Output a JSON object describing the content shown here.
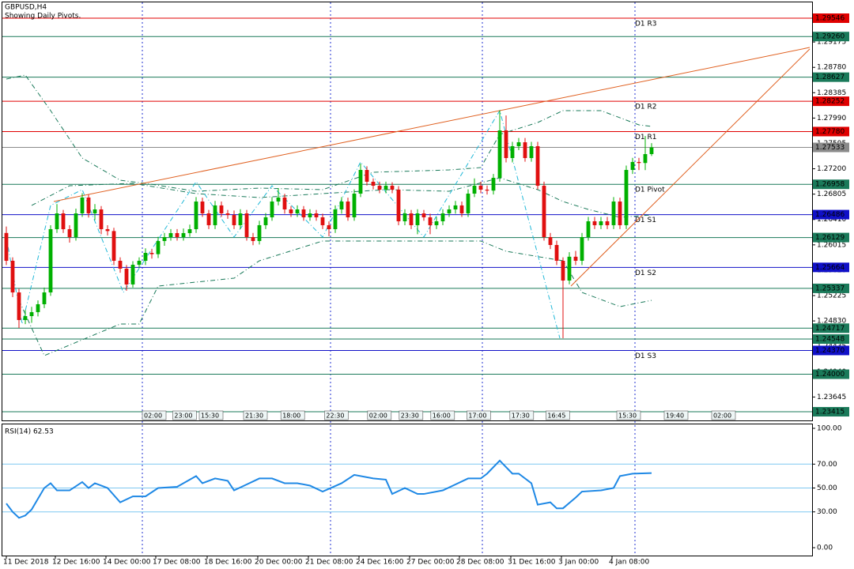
{
  "chart_data": [
    {
      "type": "candlestick",
      "title": "GBPUSD,H4",
      "subtitle": "Showing Daily Pivots.",
      "xlim": [
        -0.5,
        127
      ],
      "ylim": [
        1.2328,
        1.2978
      ],
      "yticks": [
        1.29175,
        {
          "value": 1.2878,
          "label": "1.28780"
        },
        1.28385,
        {
          "value": 1.2799,
          "label": "1.27990"
        },
        1.27595,
        {
          "value": 1.272,
          "label": "1.27200"
        },
        1.26805,
        {
          "value": 1.2641,
          "label": "1.26410"
        },
        1.26015,
        {
          "value": 1.2562,
          "label": "1.25620"
        },
        1.25225,
        {
          "value": 1.2483,
          "label": "1.24830"
        },
        1.24435,
        {
          "value": 1.2404,
          "label": "1.24040"
        },
        1.23645
      ],
      "up_color": "#00b000",
      "down_color": "#e01010",
      "open": [
        1.262,
        1.25767,
        1.25274,
        1.24844,
        1.24905,
        1.24967,
        1.2509,
        1.25274,
        1.26259,
        1.26505,
        1.26259,
        1.26136,
        1.26505,
        1.26752,
        1.26505,
        1.26567,
        1.26259,
        1.2623,
        1.25767,
        1.25644,
        1.25398,
        1.25705,
        1.25767,
        1.2589,
        1.2587,
        1.26075,
        1.26136,
        1.26198,
        1.26136,
        1.26198,
        1.26259,
        1.2669,
        1.26505,
        1.26321,
        1.26629,
        1.26505,
        1.2648,
        1.26321,
        1.26505,
        1.26136,
        1.26075,
        1.26321,
        1.26444,
        1.2669,
        1.26752,
        1.26567,
        1.26505,
        1.26567,
        1.26444,
        1.26505,
        1.26444,
        1.26321,
        1.26259,
        1.26567,
        1.2669,
        1.26444,
        1.26813,
        1.27182,
        1.26998,
        1.26936,
        1.26875,
        1.26936,
        1.26875,
        1.26382,
        1.26505,
        1.26321,
        1.26505,
        1.26444,
        1.26321,
        1.26382,
        1.26505,
        1.26567,
        1.26629,
        1.26505,
        1.26813,
        1.26936,
        1.26875,
        1.2686,
        1.27059,
        1.27798,
        1.27367,
        1.27552,
        1.27613,
        1.27367,
        1.27552,
        1.26936,
        1.26136,
        1.26013,
        1.25767,
        1.25459,
        1.2583,
        1.25767,
        1.26136,
        1.26382,
        1.26321,
        1.26382,
        1.26321,
        1.2669,
        1.26321,
        1.27182,
        1.27306,
        1.2729,
        1.27429
      ],
      "high": [
        1.263,
        1.2582,
        1.2533,
        1.25,
        1.2505,
        1.2515,
        1.2535,
        1.2632,
        1.2665,
        1.2656,
        1.2632,
        1.2658,
        1.2682,
        1.268,
        1.2665,
        1.2662,
        1.2632,
        1.2628,
        1.2582,
        1.257,
        1.2576,
        1.2582,
        1.2596,
        1.2595,
        1.2614,
        1.262,
        1.2626,
        1.2626,
        1.2627,
        1.2633,
        1.2676,
        1.2675,
        1.2656,
        1.267,
        1.2669,
        1.2656,
        1.2655,
        1.2657,
        1.2656,
        1.262,
        1.2639,
        1.2651,
        1.2676,
        1.269,
        1.2681,
        1.2662,
        1.2663,
        1.2662,
        1.2657,
        1.2656,
        1.265,
        1.2638,
        1.2663,
        1.2676,
        1.2675,
        1.2688,
        1.2728,
        1.2724,
        1.2705,
        1.27,
        1.27,
        1.2699,
        1.2693,
        1.2657,
        1.2656,
        1.2657,
        1.2656,
        1.265,
        1.2645,
        1.2657,
        1.2663,
        1.267,
        1.2669,
        1.2688,
        1.2705,
        1.27,
        1.2694,
        1.2712,
        1.2811,
        1.2803,
        1.2762,
        1.2768,
        1.2768,
        1.2762,
        1.2762,
        1.27,
        1.262,
        1.2608,
        1.2582,
        1.259,
        1.2592,
        1.262,
        1.2645,
        1.2645,
        1.2645,
        1.2645,
        1.2676,
        1.2675,
        1.2725,
        1.2737,
        1.2737,
        1.2771,
        1.276
      ],
      "low": [
        1.257,
        1.252,
        1.2472,
        1.2478,
        1.248,
        1.249,
        1.2503,
        1.2522,
        1.262,
        1.262,
        1.2605,
        1.2608,
        1.2645,
        1.2644,
        1.264,
        1.2618,
        1.2616,
        1.257,
        1.2558,
        1.253,
        1.2535,
        1.2565,
        1.257,
        1.258,
        1.2581,
        1.26,
        1.2608,
        1.2608,
        1.2608,
        1.2614,
        1.262,
        1.2645,
        1.2626,
        1.2626,
        1.2645,
        1.2642,
        1.2626,
        1.2626,
        1.2608,
        1.2601,
        1.2602,
        1.2626,
        1.2639,
        1.2663,
        1.265,
        1.2645,
        1.2645,
        1.2639,
        1.2639,
        1.2639,
        1.2626,
        1.2615,
        1.262,
        1.265,
        1.2639,
        1.2639,
        1.2676,
        1.2694,
        1.2688,
        1.2682,
        1.2682,
        1.2682,
        1.2632,
        1.2632,
        1.2626,
        1.2618,
        1.2639,
        1.2618,
        1.2626,
        1.2632,
        1.2645,
        1.265,
        1.2645,
        1.2645,
        1.2676,
        1.2682,
        1.268,
        1.268,
        1.27,
        1.273,
        1.273,
        1.2749,
        1.2731,
        1.2731,
        1.2688,
        1.2608,
        1.2595,
        1.257,
        1.2456,
        1.254,
        1.257,
        1.257,
        1.2608,
        1.2626,
        1.2626,
        1.2626,
        1.2626,
        1.2626,
        1.2626,
        1.2712,
        1.2718,
        1.2718,
        1.274
      ],
      "close": [
        1.25767,
        1.25274,
        1.24844,
        1.24905,
        1.24967,
        1.2509,
        1.25274,
        1.26259,
        1.26505,
        1.26259,
        1.26136,
        1.26505,
        1.26752,
        1.26505,
        1.26567,
        1.26259,
        1.2623,
        1.25767,
        1.25644,
        1.25398,
        1.25705,
        1.25767,
        1.2589,
        1.2587,
        1.26075,
        1.26136,
        1.26198,
        1.26136,
        1.26198,
        1.26259,
        1.2669,
        1.26505,
        1.26321,
        1.26629,
        1.26505,
        1.2648,
        1.26321,
        1.26505,
        1.26136,
        1.26075,
        1.26321,
        1.26444,
        1.2669,
        1.26752,
        1.26567,
        1.26505,
        1.26567,
        1.26444,
        1.26505,
        1.26444,
        1.26321,
        1.26259,
        1.26567,
        1.2669,
        1.26444,
        1.26813,
        1.27182,
        1.26998,
        1.26936,
        1.26875,
        1.26936,
        1.26875,
        1.26382,
        1.26505,
        1.26321,
        1.26505,
        1.26444,
        1.26321,
        1.26382,
        1.26505,
        1.26567,
        1.26629,
        1.26505,
        1.26813,
        1.26936,
        1.26875,
        1.2686,
        1.27059,
        1.27798,
        1.27367,
        1.27552,
        1.27613,
        1.27367,
        1.27552,
        1.26936,
        1.26136,
        1.26013,
        1.25767,
        1.25459,
        1.2583,
        1.25767,
        1.26136,
        1.26382,
        1.26321,
        1.26382,
        1.26321,
        1.2669,
        1.26321,
        1.27182,
        1.27306,
        1.2729,
        1.27429,
        1.27533
      ],
      "levels": [
        {
          "value": 1.29546,
          "color": "#e00000",
          "pivot": "D1 R3"
        },
        {
          "value": 1.2926,
          "label": "1.29260",
          "color": "#1a7a5a"
        },
        {
          "value": 1.28627,
          "color": "#1a7a5a"
        },
        {
          "value": 1.28252,
          "color": "#e00000",
          "pivot": "D1 R2"
        },
        {
          "value": 1.2778,
          "label": "1.27780",
          "color": "#e00000",
          "pivot": "D1 R1"
        },
        {
          "value": 1.27533,
          "color": "#8a8a8a"
        },
        {
          "value": 1.26958,
          "color": "#1a7a5a",
          "pivot": "D1 Pivot"
        },
        {
          "value": 1.26486,
          "color": "#1010c8",
          "pivot": "D1 S1"
        },
        {
          "value": 1.26129,
          "color": "#1a7a5a"
        },
        {
          "value": 1.25664,
          "color": "#1010c8",
          "pivot": "D1 S2"
        },
        {
          "value": 1.25337,
          "color": "#1a7a5a"
        },
        {
          "value": 1.24717,
          "color": "#1a7a5a"
        },
        {
          "value": 1.24548,
          "color": "#1a7a5a"
        },
        {
          "value": 1.2437,
          "label": "1.24370",
          "color": "#1010c8",
          "pivot": "D1 S3"
        },
        {
          "value": 1.24,
          "label": "1.24000",
          "color": "#1a7a5a"
        },
        {
          "value": 1.23415,
          "color": "#1a7a5a"
        }
      ],
      "bands": [
        {
          "color": "#1a7a5a",
          "x": [
            0,
            3,
            7,
            12,
            18,
            22,
            30,
            40,
            50,
            58,
            70,
            75,
            78,
            84,
            88,
            94,
            100,
            102
          ],
          "values": [
            1.28598,
            1.2866,
            1.28106,
            1.27367,
            1.27022,
            1.26973,
            1.2685,
            1.26899,
            1.26875,
            1.27146,
            1.27182,
            1.27219,
            1.27736,
            1.27921,
            1.28106,
            1.28106,
            1.27884,
            1.2786
          ]
        },
        {
          "color": "#1a7a5a",
          "x": [
            4,
            10,
            20,
            30,
            40,
            50,
            60,
            70,
            78,
            84,
            88,
            92,
            97,
            102
          ],
          "values": [
            1.26629,
            1.26936,
            1.26973,
            1.26813,
            1.26752,
            1.26813,
            1.26875,
            1.2685,
            1.27059,
            1.26875,
            1.2669,
            1.26567,
            1.26444,
            1.26481
          ]
        },
        {
          "color": "#1a7a5a",
          "x": [
            2,
            6,
            12,
            18,
            21,
            24,
            36,
            40,
            50,
            75,
            79,
            88,
            91,
            97,
            102
          ],
          "values": [
            1.25151,
            1.2429,
            1.24536,
            1.24782,
            1.24782,
            1.25373,
            1.25496,
            1.25767,
            1.26075,
            1.26075,
            1.25915,
            1.25767,
            1.25274,
            1.25053,
            1.25151
          ]
        },
        {
          "color": "#20b8d8",
          "x": [
            0,
            2.5,
            7,
            12,
            18.5,
            30,
            36,
            42,
            50,
            56,
            66,
            78,
            87.5
          ],
          "values": [
            1.26136,
            1.24782,
            1.26629,
            1.26875,
            1.25274,
            1.26998,
            1.26136,
            1.26936,
            1.26136,
            1.27306,
            1.26136,
            1.28106,
            1.2456
          ]
        }
      ],
      "trendlines": [
        {
          "color": "#e06020",
          "x": [
            7.5,
            127
          ],
          "values": [
            1.2669,
            1.2909
          ]
        },
        {
          "color": "#e06020",
          "x": [
            89.25,
            127
          ],
          "values": [
            1.25373,
            1.29066
          ]
        }
      ],
      "time_markers": [
        {
          "x": 21.5,
          "label": "02:00"
        },
        {
          "x": 26.3,
          "label": "23:00"
        },
        {
          "x": 30.5,
          "label": "15:30"
        },
        {
          "x": 37.5,
          "label": "21:30"
        },
        {
          "x": 43.4,
          "label": "18:00"
        },
        {
          "x": 50.3,
          "label": "22:30"
        },
        {
          "x": 57.1,
          "label": "02:00"
        },
        {
          "x": 62.1,
          "label": "23:30"
        },
        {
          "x": 67.1,
          "label": "16:00"
        },
        {
          "x": 72.8,
          "label": "17:00"
        },
        {
          "x": 79.6,
          "label": "17:30"
        },
        {
          "x": 85.3,
          "label": "16:45"
        },
        {
          "x": 96.5,
          "label": "15:30"
        },
        {
          "x": 104,
          "label": "19:40"
        },
        {
          "x": 111.5,
          "label": "02:00"
        }
      ]
    },
    {
      "type": "line",
      "title": "RSI(14) 62.53",
      "color": "#1e88e5",
      "xlim": [
        -0.5,
        127
      ],
      "ylim": [
        -6.6,
        103.3
      ],
      "yticks": [
        {
          "value": 100,
          "label": "100.00"
        },
        {
          "value": 70,
          "label": "70.00"
        },
        {
          "value": 50,
          "label": "50.00"
        },
        {
          "value": 30,
          "label": "30.00"
        },
        {
          "value": 0,
          "label": "0.00"
        }
      ],
      "levels": [
        70,
        50,
        30
      ],
      "x": [
        0,
        1,
        2,
        3,
        4,
        6,
        7,
        8,
        10,
        12,
        13,
        14,
        16,
        18,
        20,
        22,
        24,
        27,
        30,
        31,
        33,
        35,
        36,
        38,
        40,
        42,
        44,
        46,
        48,
        50,
        53,
        55,
        58,
        60,
        61,
        63,
        65,
        66,
        69,
        71,
        73,
        75,
        76,
        78,
        80,
        81,
        83,
        84,
        86,
        87,
        88,
        90,
        91,
        94,
        96,
        97,
        99,
        102
      ],
      "values": [
        37,
        30,
        25,
        27,
        32,
        50,
        54,
        48,
        48,
        55,
        50,
        54,
        50,
        38,
        43,
        43,
        50,
        51,
        60,
        54,
        58,
        56,
        48,
        53,
        58,
        58,
        54,
        54,
        52,
        47,
        54,
        61,
        58,
        57,
        45,
        50,
        45,
        45,
        48,
        53,
        58,
        58,
        62,
        73,
        62,
        62,
        54,
        36,
        38,
        33,
        33,
        42,
        47,
        48,
        50,
        60,
        62,
        62.53
      ],
      "xticks": [
        {
          "value": 0,
          "label": "11 Dec 2018"
        },
        {
          "value": 7.75,
          "label": "12 Dec 16:00"
        },
        {
          "value": 15.75,
          "label": "14 Dec 00:00"
        },
        {
          "value": 23.625,
          "label": "17 Dec 08:00"
        },
        {
          "value": 31.75,
          "label": "18 Dec 16:00"
        },
        {
          "value": 39.75,
          "label": "20 Dec 00:00"
        },
        {
          "value": 47.75,
          "label": "21 Dec 08:00"
        },
        {
          "value": 55.75,
          "label": "24 Dec 16:00"
        },
        {
          "value": 63.75,
          "label": "27 Dec 00:00"
        },
        {
          "value": 71.625,
          "label": "28 Dec 08:00"
        },
        {
          "value": 79.75,
          "label": "31 Dec 16:00"
        },
        {
          "value": 87.75,
          "label": "3 Jan 00:00"
        },
        {
          "value": 95.75,
          "label": "4 Jan 08:00"
        }
      ]
    }
  ]
}
